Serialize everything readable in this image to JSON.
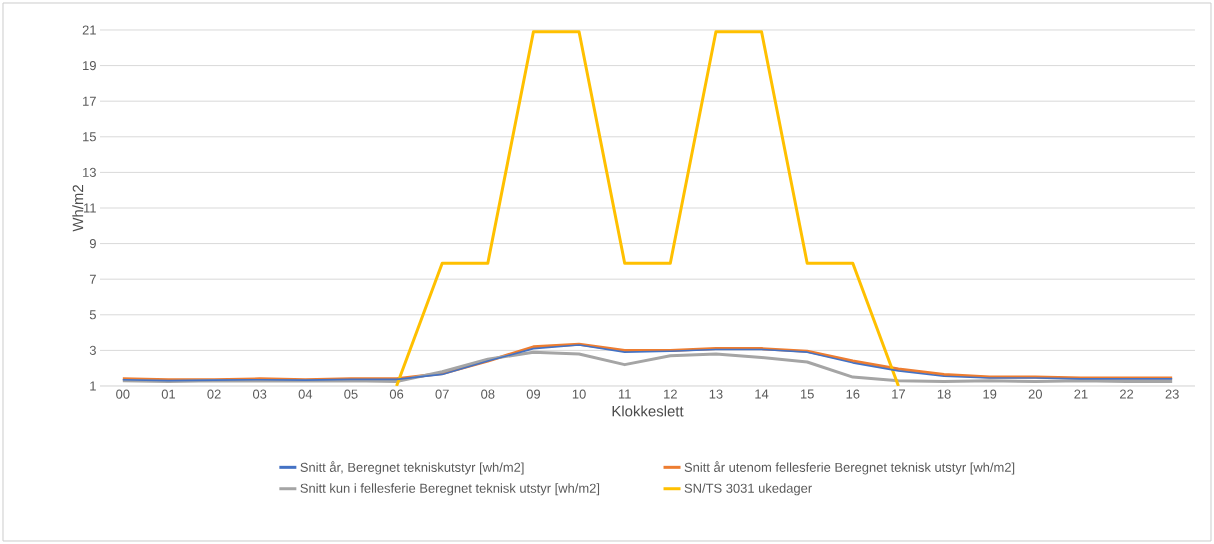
{
  "chart_data": {
    "type": "line",
    "xlabel": "Klokkeslett",
    "ylabel": "Wh/m2",
    "categories": [
      "00",
      "01",
      "02",
      "03",
      "04",
      "05",
      "06",
      "07",
      "08",
      "09",
      "10",
      "11",
      "12",
      "13",
      "14",
      "15",
      "16",
      "17",
      "18",
      "19",
      "20",
      "21",
      "22",
      "23"
    ],
    "series": [
      {
        "name": "Snitt år, Beregnet tekniskutstyr [wh/m2]",
        "color": "#4472c4",
        "values": [
          1.35,
          1.3,
          1.33,
          1.35,
          1.33,
          1.37,
          1.37,
          1.65,
          2.4,
          3.1,
          3.3,
          2.9,
          2.95,
          3.05,
          3.05,
          2.9,
          2.3,
          1.85,
          1.55,
          1.45,
          1.45,
          1.4,
          1.4,
          1.4
        ]
      },
      {
        "name": "Snitt år utenom fellesferie Beregnet teknisk utstyr [wh/m2]",
        "color": "#ed7d31",
        "values": [
          1.4,
          1.35,
          1.35,
          1.4,
          1.35,
          1.4,
          1.4,
          1.7,
          2.4,
          3.2,
          3.35,
          3.0,
          3.0,
          3.1,
          3.1,
          2.95,
          2.4,
          1.95,
          1.65,
          1.5,
          1.5,
          1.45,
          1.45,
          1.45
        ]
      },
      {
        "name": "Snitt kun i fellesferie Beregnet teknisk utstyr [wh/m2]",
        "color": "#a5a5a5",
        "values": [
          1.3,
          1.25,
          1.3,
          1.28,
          1.28,
          1.3,
          1.25,
          1.8,
          2.5,
          2.9,
          2.8,
          2.2,
          2.7,
          2.8,
          2.6,
          2.35,
          1.5,
          1.3,
          1.25,
          1.3,
          1.25,
          1.3,
          1.25,
          1.25
        ]
      },
      {
        "name": "SN/TS 3031 ukedager",
        "color": "#ffc000",
        "values": [
          null,
          null,
          null,
          null,
          null,
          null,
          1,
          7.9,
          7.9,
          20.9,
          20.9,
          7.9,
          7.9,
          20.9,
          20.9,
          7.9,
          7.9,
          1,
          null,
          null,
          null,
          null,
          null,
          null
        ]
      }
    ],
    "ylim": [
      1,
      21
    ],
    "yticks": [
      1,
      3,
      5,
      7,
      9,
      11,
      13,
      15,
      17,
      19,
      21
    ],
    "grid": "y",
    "legend": "bottom",
    "marker": "none",
    "line_style": "solid"
  }
}
